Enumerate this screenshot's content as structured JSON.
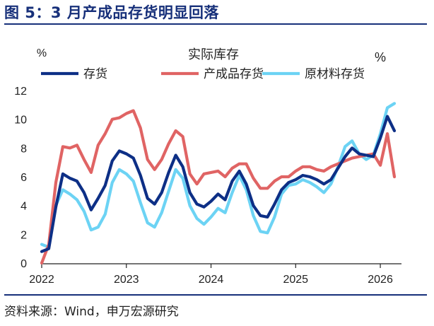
{
  "header": {
    "title": "图 5：3 月产成品存货明显回落"
  },
  "footer": {
    "source": "资料来源：Wind，申万宏源研究"
  },
  "chart_data": {
    "type": "line",
    "title": "实际库存",
    "left_unit": "%",
    "right_unit": "%",
    "ylim": [
      0,
      12
    ],
    "yticks": [
      "0",
      "2",
      "4",
      "6",
      "8",
      "10",
      "12"
    ],
    "xlim": [
      2022.0,
      2026.25
    ],
    "xticks": [
      {
        "label": "2022",
        "value": 2022.0
      },
      {
        "label": "2023",
        "value": 2023.0
      },
      {
        "label": "2024",
        "value": 2024.0
      },
      {
        "label": "2025",
        "value": 2025.0
      },
      {
        "label": "2026",
        "value": 2026.0
      }
    ],
    "x_start": 2022.0,
    "x_step_months": 1,
    "series": [
      {
        "name": "存货",
        "color": "#0d2f86",
        "values": [
          0.8,
          1.0,
          3.9,
          6.2,
          5.9,
          5.7,
          4.9,
          3.7,
          4.5,
          5.4,
          7.1,
          7.8,
          7.6,
          7.3,
          6.1,
          4.5,
          4.1,
          4.9,
          6.3,
          7.5,
          6.7,
          4.9,
          4.1,
          3.9,
          4.3,
          4.8,
          4.4,
          5.7,
          6.4,
          5.5,
          4.0,
          3.3,
          3.2,
          4.1,
          5.1,
          5.6,
          5.8,
          6.1,
          6.0,
          5.8,
          5.5,
          5.8,
          6.6,
          7.4,
          8.0,
          7.6,
          7.5,
          7.4,
          8.7,
          10.2,
          9.2
        ]
      },
      {
        "name": "产成品存货",
        "color": "#e06464",
        "values": [
          0.0,
          1.3,
          5.6,
          8.1,
          8.0,
          8.2,
          7.2,
          6.3,
          8.2,
          9.0,
          10.0,
          10.1,
          10.4,
          10.6,
          9.4,
          7.2,
          6.5,
          7.2,
          8.3,
          9.2,
          8.8,
          6.2,
          5.5,
          6.2,
          6.3,
          6.4,
          6.0,
          6.6,
          6.9,
          6.9,
          5.9,
          5.2,
          5.2,
          5.7,
          6.0,
          6.0,
          6.4,
          6.7,
          6.7,
          6.5,
          6.4,
          6.7,
          6.9,
          7.1,
          7.3,
          7.4,
          7.5,
          7.6,
          6.8,
          9.0,
          6.0
        ]
      },
      {
        "name": "原材料存货",
        "color": "#6cd3f4",
        "values": [
          1.3,
          1.1,
          4.0,
          5.1,
          4.8,
          4.4,
          3.6,
          2.3,
          2.5,
          3.4,
          5.6,
          6.5,
          6.2,
          5.7,
          4.2,
          2.8,
          2.5,
          3.5,
          5.0,
          6.5,
          5.9,
          4.0,
          3.1,
          2.7,
          3.2,
          3.8,
          3.5,
          4.9,
          6.1,
          5.1,
          3.3,
          2.2,
          2.1,
          3.2,
          4.8,
          5.4,
          5.5,
          5.8,
          5.6,
          5.3,
          4.9,
          5.5,
          6.7,
          8.1,
          8.5,
          7.6,
          7.2,
          7.5,
          9.0,
          10.8,
          11.1
        ]
      }
    ]
  }
}
